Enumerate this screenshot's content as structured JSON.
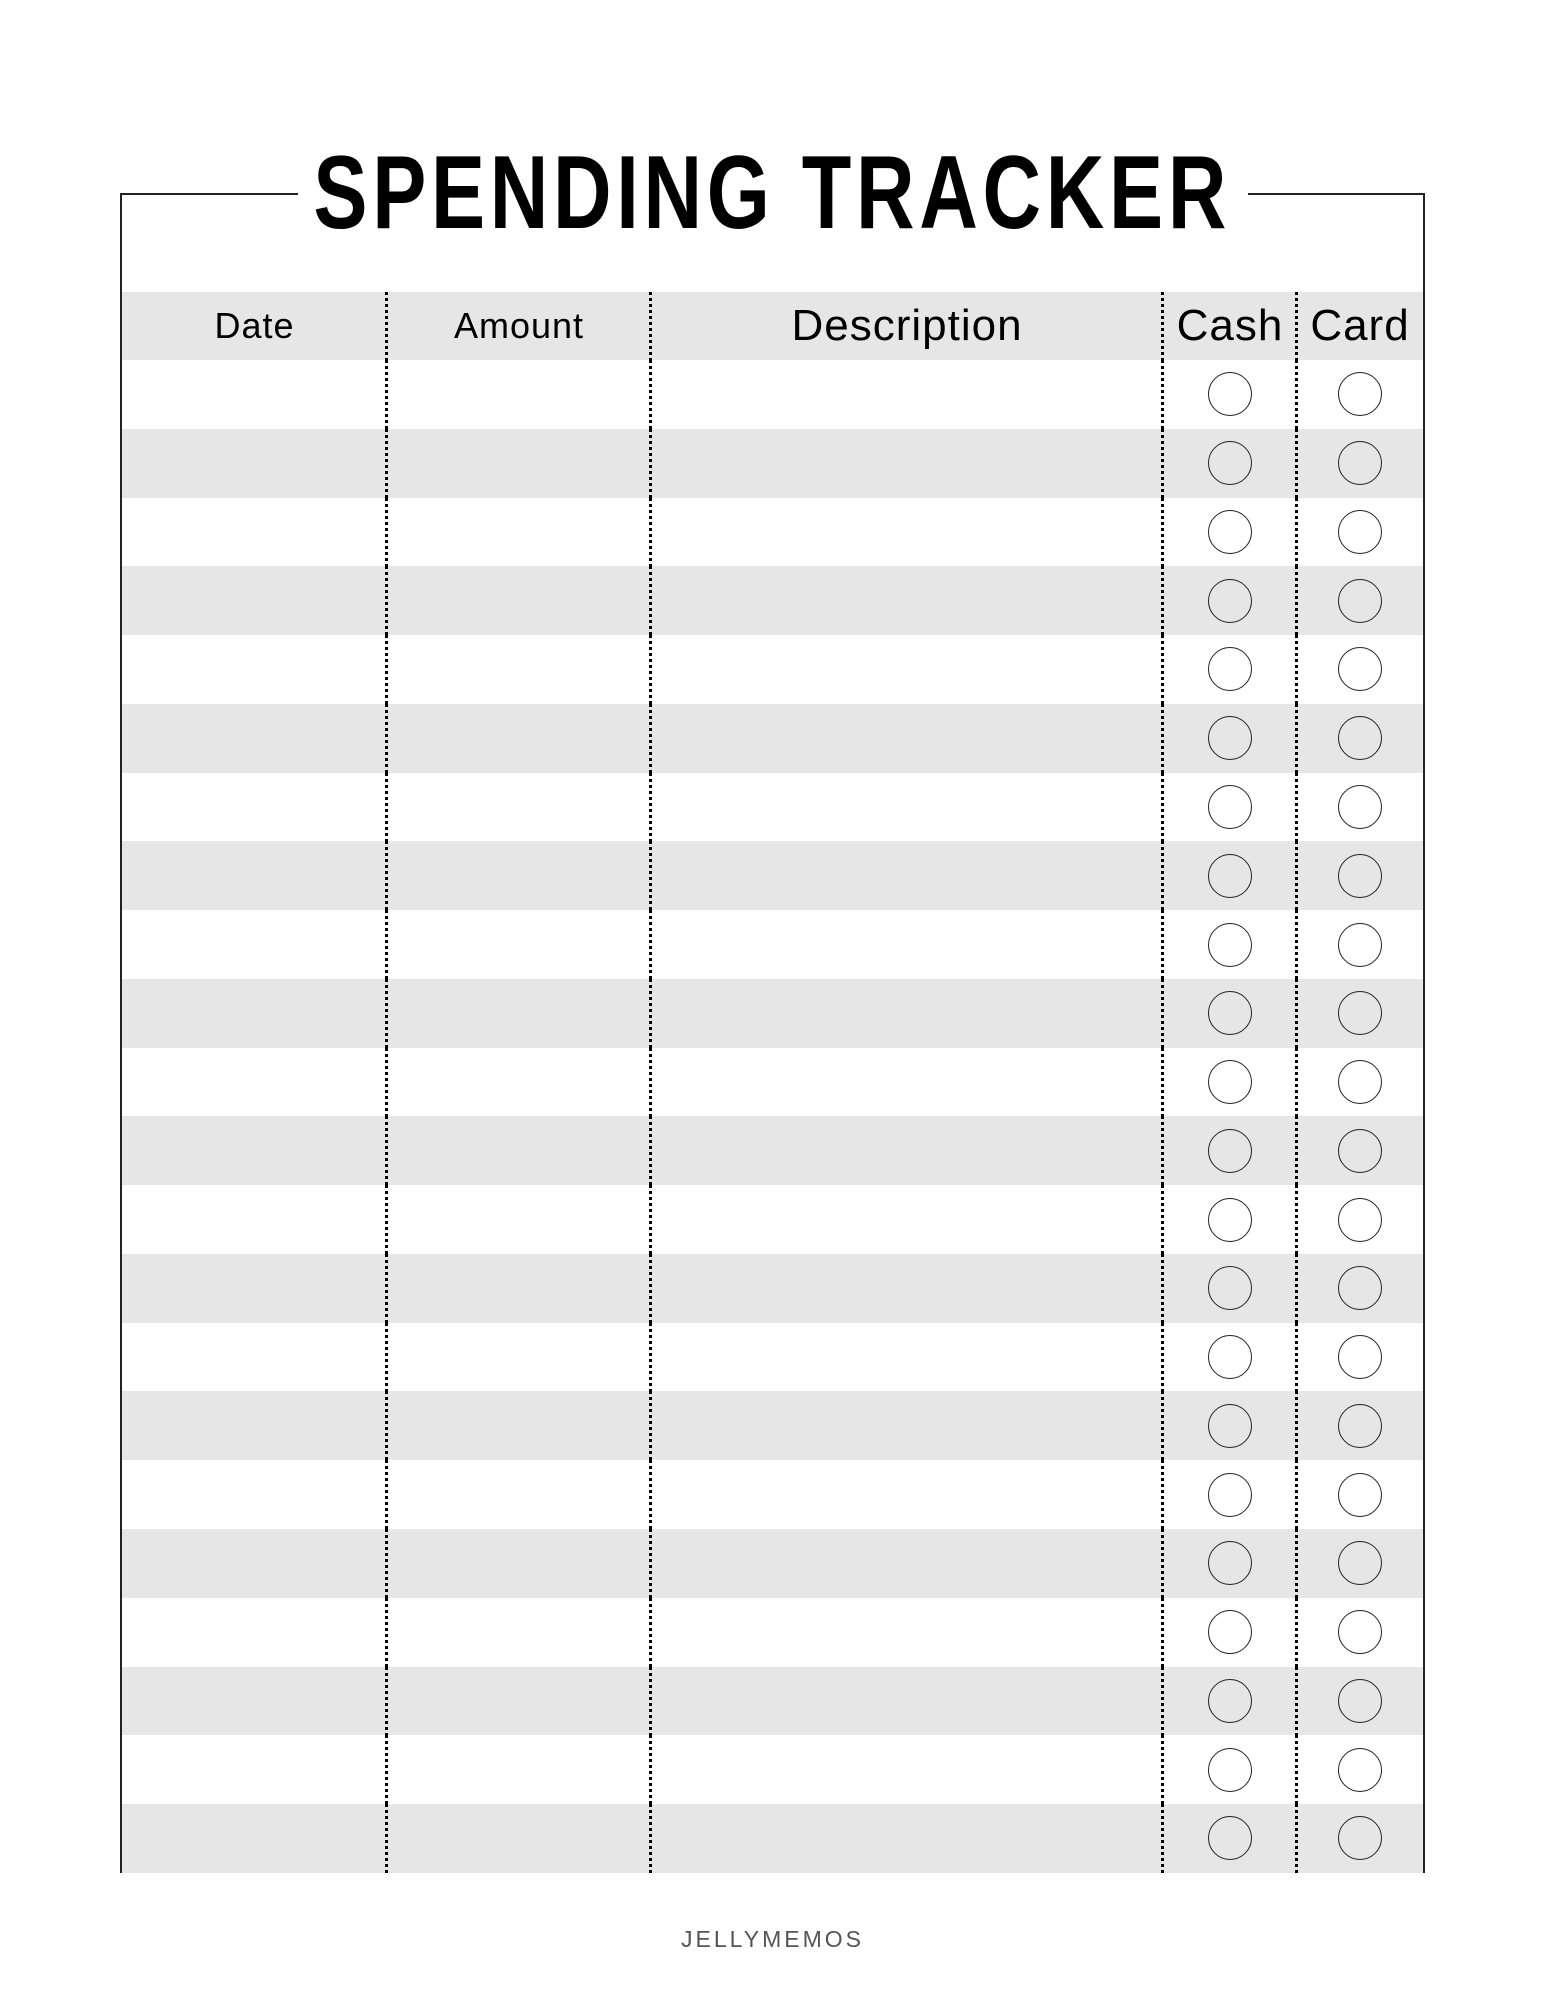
{
  "title": "SPENDING TRACKER",
  "columns": [
    "Date",
    "Amount",
    "Description",
    "Cash",
    "Card"
  ],
  "rows": [
    {
      "date": "",
      "amount": "",
      "description": "",
      "cash": false,
      "card": false
    },
    {
      "date": "",
      "amount": "",
      "description": "",
      "cash": false,
      "card": false
    },
    {
      "date": "",
      "amount": "",
      "description": "",
      "cash": false,
      "card": false
    },
    {
      "date": "",
      "amount": "",
      "description": "",
      "cash": false,
      "card": false
    },
    {
      "date": "",
      "amount": "",
      "description": "",
      "cash": false,
      "card": false
    },
    {
      "date": "",
      "amount": "",
      "description": "",
      "cash": false,
      "card": false
    },
    {
      "date": "",
      "amount": "",
      "description": "",
      "cash": false,
      "card": false
    },
    {
      "date": "",
      "amount": "",
      "description": "",
      "cash": false,
      "card": false
    },
    {
      "date": "",
      "amount": "",
      "description": "",
      "cash": false,
      "card": false
    },
    {
      "date": "",
      "amount": "",
      "description": "",
      "cash": false,
      "card": false
    },
    {
      "date": "",
      "amount": "",
      "description": "",
      "cash": false,
      "card": false
    },
    {
      "date": "",
      "amount": "",
      "description": "",
      "cash": false,
      "card": false
    },
    {
      "date": "",
      "amount": "",
      "description": "",
      "cash": false,
      "card": false
    },
    {
      "date": "",
      "amount": "",
      "description": "",
      "cash": false,
      "card": false
    },
    {
      "date": "",
      "amount": "",
      "description": "",
      "cash": false,
      "card": false
    },
    {
      "date": "",
      "amount": "",
      "description": "",
      "cash": false,
      "card": false
    },
    {
      "date": "",
      "amount": "",
      "description": "",
      "cash": false,
      "card": false
    },
    {
      "date": "",
      "amount": "",
      "description": "",
      "cash": false,
      "card": false
    },
    {
      "date": "",
      "amount": "",
      "description": "",
      "cash": false,
      "card": false
    },
    {
      "date": "",
      "amount": "",
      "description": "",
      "cash": false,
      "card": false
    },
    {
      "date": "",
      "amount": "",
      "description": "",
      "cash": false,
      "card": false
    },
    {
      "date": "",
      "amount": "",
      "description": "",
      "cash": false,
      "card": false
    }
  ],
  "footer": "JELLYMEMOS",
  "colors": {
    "stripe": "#e6e6e6",
    "ink": "#000000"
  }
}
